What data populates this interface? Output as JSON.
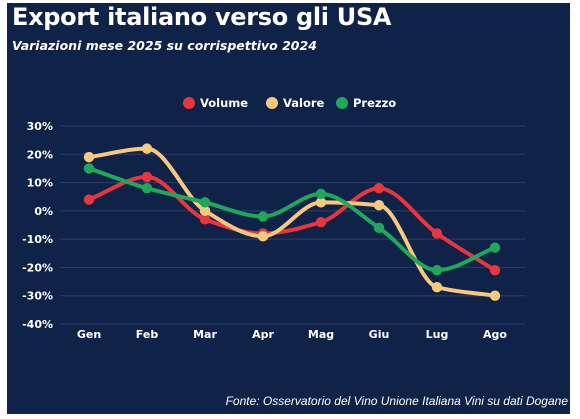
{
  "header": {
    "title": "Export italiano verso gli USA",
    "subtitle": "Variazioni mese 2025 su corrispettivo 2024"
  },
  "footer": {
    "source": "Fonte: Osservatorio del Vino Unione Italiana Vini su dati Dogane"
  },
  "colors": {
    "background": "#0f2248",
    "Volume": "#e8363e",
    "Valore": "#f7c97e",
    "Prezzo": "#1fa85a"
  },
  "chart_data": {
    "type": "line",
    "title": "Export italiano verso gli USA",
    "subtitle": "Variazioni mese 2025 su corrispettivo 2024",
    "categories": [
      "Gen",
      "Feb",
      "Mar",
      "Apr",
      "Mag",
      "Giu",
      "Lug",
      "Ago"
    ],
    "series": [
      {
        "name": "Volume",
        "values": [
          4,
          12,
          -3,
          -8,
          -4,
          8,
          -8,
          -21
        ]
      },
      {
        "name": "Valore",
        "values": [
          19,
          22,
          0,
          -9,
          3,
          2,
          -27,
          -30
        ]
      },
      {
        "name": "Prezzo",
        "values": [
          15,
          8,
          3,
          -2,
          6,
          -6,
          -21,
          -13
        ]
      }
    ],
    "ylim": [
      -40,
      30
    ],
    "yticks": [
      30,
      20,
      10,
      0,
      -10,
      -20,
      -30,
      -40
    ],
    "ytick_labels": [
      "30%",
      "20%",
      "10%",
      "0%",
      "-10%",
      "-20%",
      "-30%",
      "-40%"
    ],
    "xlabel": "",
    "ylabel": "",
    "grid": true,
    "legend_position": "top-right",
    "smooth": true,
    "markers": true
  }
}
